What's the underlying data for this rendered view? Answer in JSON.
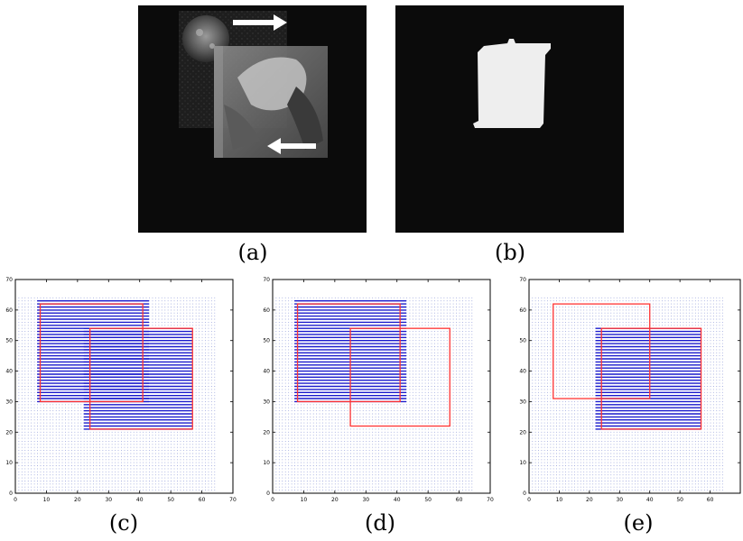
{
  "captions": {
    "a": "(a)",
    "b": "(b)",
    "c": "(c)",
    "d": "(d)",
    "e": "(e)"
  },
  "colors": {
    "background": "#0b0b0b",
    "mask": "#eeeeee",
    "flow_arrow": "#1a1acc",
    "grid_dot": "#9ca6dd",
    "outline": "#ff3333"
  },
  "image_a": {
    "layers": [
      "textured-disc",
      "translucent-photo-patch"
    ],
    "arrows": [
      "right",
      "left"
    ]
  },
  "chart_data": [
    {
      "panel": "c",
      "type": "scatter",
      "xlim": [
        0,
        70
      ],
      "ylim": [
        0,
        70
      ],
      "xticks": [
        0,
        10,
        20,
        30,
        40,
        50,
        60,
        70
      ],
      "yticks": [
        0,
        10,
        20,
        30,
        40,
        50,
        60,
        70
      ],
      "sample_grid": {
        "x_range": [
          1,
          64
        ],
        "y_range": [
          1,
          64
        ],
        "step": 1
      },
      "flow_regions": [
        {
          "x": [
            7,
            43
          ],
          "y": [
            30,
            63
          ]
        },
        {
          "x": [
            22,
            57
          ],
          "y": [
            21,
            54
          ]
        }
      ],
      "rectangles": [
        {
          "x": [
            8,
            41
          ],
          "y": [
            30,
            62
          ]
        },
        {
          "x": [
            24,
            57
          ],
          "y": [
            21,
            54
          ]
        }
      ]
    },
    {
      "panel": "d",
      "type": "scatter",
      "xlim": [
        0,
        70
      ],
      "ylim": [
        0,
        70
      ],
      "xticks": [
        0,
        10,
        20,
        30,
        40,
        50,
        60,
        70
      ],
      "yticks": [
        0,
        10,
        20,
        30,
        40,
        50,
        60,
        70
      ],
      "sample_grid": {
        "x_range": [
          1,
          64
        ],
        "y_range": [
          1,
          64
        ],
        "step": 1
      },
      "flow_regions": [
        {
          "x": [
            7,
            43
          ],
          "y": [
            30,
            63
          ]
        }
      ],
      "rectangles": [
        {
          "x": [
            8,
            41
          ],
          "y": [
            30,
            62
          ]
        },
        {
          "x": [
            25,
            57
          ],
          "y": [
            22,
            54
          ]
        }
      ]
    },
    {
      "panel": "e",
      "type": "scatter",
      "xlim": [
        0,
        70
      ],
      "ylim": [
        0,
        70
      ],
      "xticks": [
        0,
        10,
        20,
        30,
        40,
        50,
        60
      ],
      "yticks": [
        0,
        10,
        20,
        30,
        40,
        50,
        60,
        70
      ],
      "sample_grid": {
        "x_range": [
          1,
          64
        ],
        "y_range": [
          1,
          64
        ],
        "step": 1
      },
      "flow_regions": [
        {
          "x": [
            22,
            57
          ],
          "y": [
            21,
            54
          ]
        }
      ],
      "rectangles": [
        {
          "x": [
            8,
            40
          ],
          "y": [
            31,
            62
          ]
        },
        {
          "x": [
            24,
            57
          ],
          "y": [
            21,
            54
          ]
        }
      ]
    }
  ]
}
